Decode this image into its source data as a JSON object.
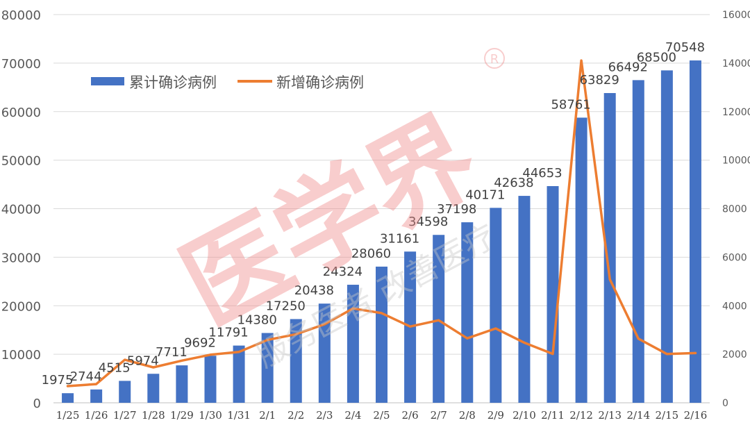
{
  "watermark": {
    "brand": "医学界",
    "sub": "服务医者 改善医疗",
    "mark": "R"
  },
  "chart_data": {
    "type": "bar",
    "categories": [
      "1/25",
      "1/26",
      "1/27",
      "1/28",
      "1/29",
      "1/30",
      "1/31",
      "2/1",
      "2/2",
      "2/3",
      "2/4",
      "2/5",
      "2/6",
      "2/7",
      "2/8",
      "2/9",
      "2/10",
      "2/11",
      "2/12",
      "2/13",
      "2/14",
      "2/15",
      "2/16"
    ],
    "series": [
      {
        "name": "累计确诊病例",
        "type": "bar",
        "axis": "left",
        "color": "#4472c4",
        "values": [
          1975,
          2744,
          4515,
          5974,
          7711,
          9692,
          11791,
          14380,
          17250,
          20438,
          24324,
          28060,
          31161,
          34598,
          37198,
          40171,
          42638,
          44653,
          58761,
          63829,
          66492,
          68500,
          70548
        ]
      },
      {
        "name": "新增确诊病例",
        "type": "line",
        "axis": "right",
        "color": "#ed7d31",
        "values": [
          688,
          769,
          1771,
          1459,
          1737,
          1981,
          2099,
          2589,
          2825,
          3235,
          3887,
          3694,
          3143,
          3399,
          2656,
          3062,
          2478,
          2015,
          14108,
          5090,
          2641,
          2009,
          2048
        ]
      }
    ],
    "y_left": {
      "min": 0,
      "max": 80000,
      "step": 10000,
      "ticks": [
        "0",
        "10000",
        "20000",
        "30000",
        "40000",
        "50000",
        "60000",
        "70000",
        "80000"
      ]
    },
    "y_right": {
      "min": 0,
      "max": 16000,
      "step": 2000,
      "ticks": [
        "0",
        "2000",
        "4000",
        "6000",
        "8000",
        "10000",
        "12000",
        "14000",
        "16000"
      ]
    },
    "grid": true,
    "legend_position": "top-left"
  }
}
